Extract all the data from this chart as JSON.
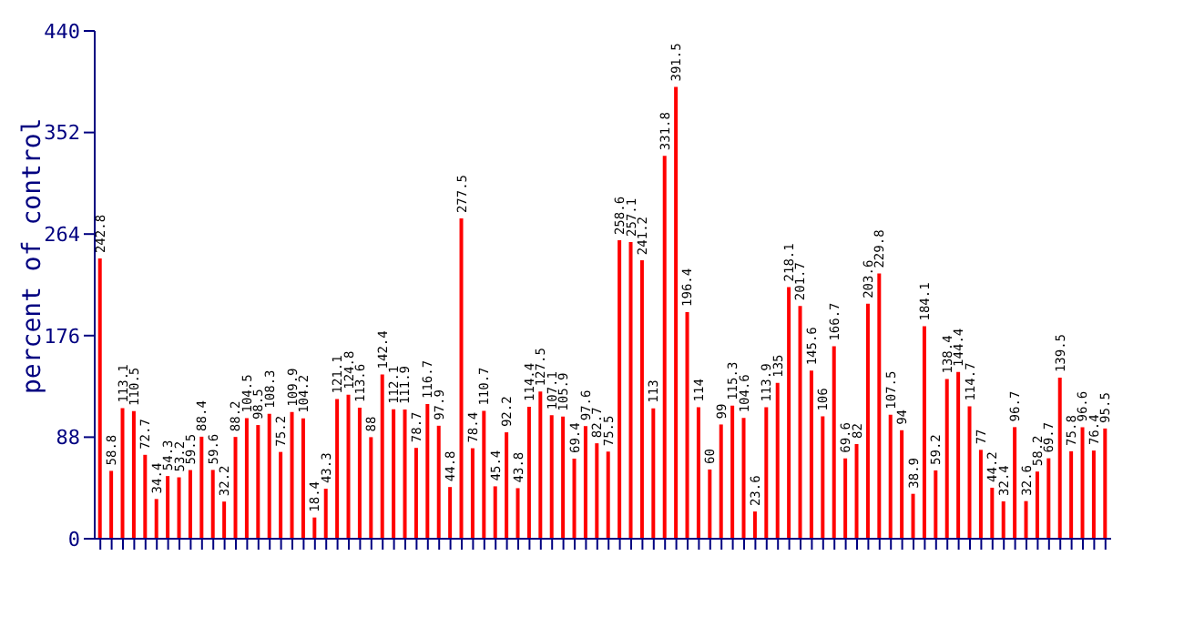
{
  "chart_data": {
    "type": "bar",
    "ylabel": "percent of control",
    "color": "#ff0000",
    "ylim": [
      0,
      440
    ],
    "yticks": [
      0,
      88,
      176,
      264,
      352,
      440
    ],
    "data_labels": true,
    "grid": false,
    "legend": false,
    "categories": [
      null,
      null,
      null,
      null,
      null,
      null,
      null,
      null,
      null,
      null,
      null,
      null,
      null,
      null,
      null,
      null,
      null,
      null,
      null,
      null,
      null,
      null,
      null,
      null,
      null,
      null,
      null,
      null,
      null,
      null,
      null,
      null,
      null,
      null,
      null,
      null,
      null,
      null,
      null,
      null,
      null,
      null,
      null,
      null,
      null,
      null,
      null,
      null,
      null,
      null,
      null,
      null,
      null,
      null,
      null,
      null,
      null,
      null,
      null,
      null,
      null,
      null,
      null,
      null,
      null,
      null,
      null,
      null,
      null,
      null,
      null,
      null,
      null,
      null,
      null,
      null,
      null,
      null,
      null,
      null,
      null,
      null,
      null,
      null,
      null,
      null,
      null,
      null,
      null,
      null
    ],
    "values": [
      242.8,
      58.8,
      113.1,
      110.5,
      72.7,
      34.4,
      54.3,
      53.2,
      59.5,
      88.4,
      59.6,
      32.2,
      88.2,
      104.5,
      98.5,
      108.3,
      75.2,
      109.9,
      104.2,
      18.4,
      43.3,
      121.1,
      124.8,
      113.6,
      88,
      142.4,
      112.1,
      111.9,
      78.7,
      116.7,
      97.9,
      44.8,
      277.5,
      78.4,
      110.7,
      45.4,
      92.2,
      43.8,
      114.4,
      127.5,
      107.1,
      105.9,
      69.4,
      97.6,
      82.7,
      75.5,
      258.6,
      257.1,
      241.2,
      113,
      331.8,
      391.5,
      196.4,
      114,
      60,
      99,
      115.3,
      104.6,
      23.6,
      113.9,
      135,
      218.1,
      201.7,
      145.6,
      106,
      166.7,
      69.6,
      82,
      203.6,
      229.8,
      107.5,
      94,
      38.9,
      184.1,
      59.2,
      138.4,
      144.4,
      114.7,
      77,
      44.2,
      32.4,
      96.7,
      32.6,
      58.2,
      69.7,
      139.5,
      75.8,
      96.6,
      76.4,
      95.5
    ]
  }
}
